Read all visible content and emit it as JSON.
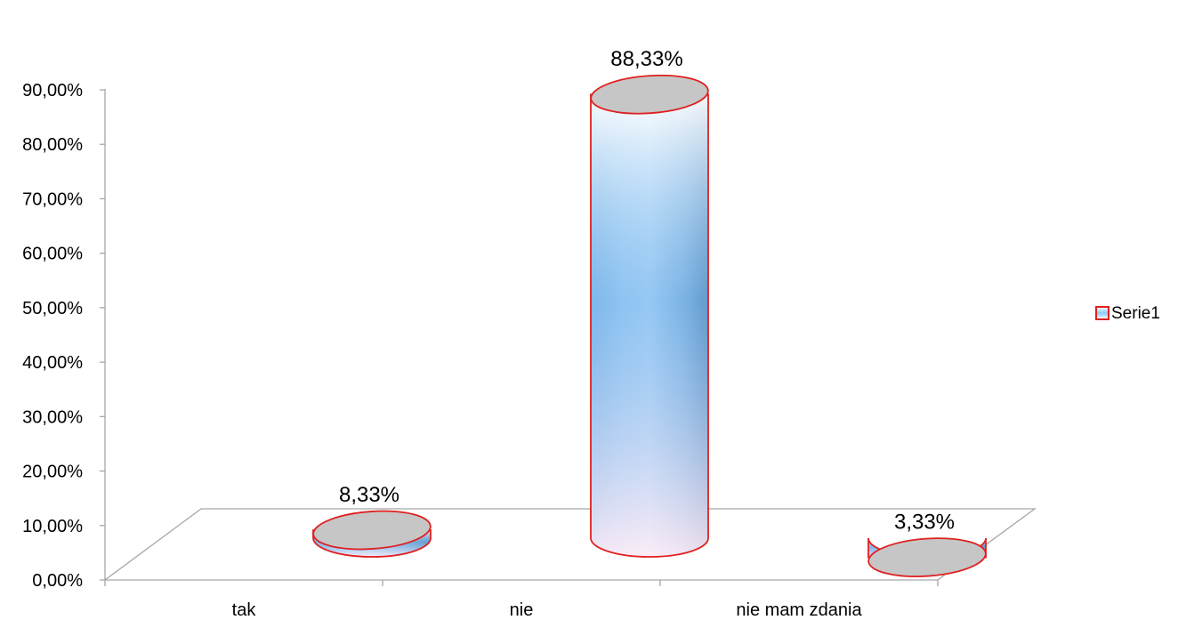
{
  "chart_data": {
    "type": "bar",
    "style": "3d-cylinder",
    "categories": [
      "tak",
      "nie",
      "nie mam zdania"
    ],
    "series": [
      {
        "name": "Serie1",
        "values": [
          8.33,
          88.33,
          3.33
        ]
      }
    ],
    "data_labels": [
      "8,33%",
      "88,33%",
      "3,33%"
    ],
    "yticks": [
      "0,00%",
      "10,00%",
      "20,00%",
      "30,00%",
      "40,00%",
      "50,00%",
      "60,00%",
      "70,00%",
      "80,00%",
      "90,00%"
    ],
    "ylim": [
      0,
      90
    ],
    "grid": false,
    "legend_position": "right",
    "colors": {
      "bar_outline": "#e02020",
      "bar_light": "#ffffff",
      "bar_mid": "#8ccaf5",
      "bar_dark": "#4e6a8c",
      "bar_top": "#c6c6c6",
      "axis": "#a6a6a6"
    }
  }
}
